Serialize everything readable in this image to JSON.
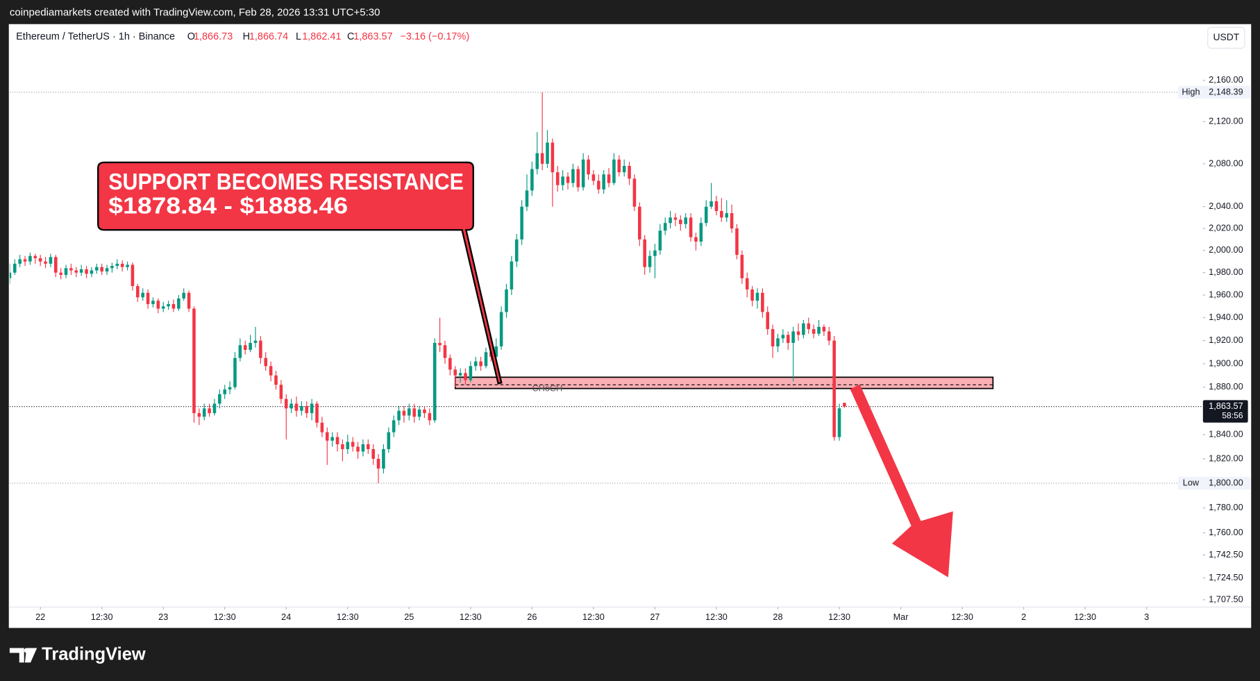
{
  "header": {
    "attribution": "coinpediamarkets created with TradingView.com, Feb 28, 2026 13:31 UTC+5:30"
  },
  "chart_data": {
    "type": "candlestick",
    "symbol": "Ethereum / TetherUS · 1h · Binance",
    "ohlc_legend": [
      {
        "key": "O",
        "text": "1,866.73"
      },
      {
        "key": "H",
        "text": "1,866.74"
      },
      {
        "key": "L",
        "text": "1,862.41"
      },
      {
        "key": "C",
        "text": "1,863.57"
      }
    ],
    "change": "−3.16 (−0.17%)",
    "currency": "USDT",
    "x": [
      -6,
      -5,
      -4,
      -3,
      -2,
      -1,
      0,
      1,
      2,
      3,
      4,
      5,
      6,
      7,
      8,
      9,
      10,
      11,
      12,
      13,
      14,
      15,
      16,
      17,
      18,
      19,
      20,
      21,
      22,
      23,
      24,
      25,
      26,
      27,
      28,
      29,
      30,
      31,
      32,
      33,
      34,
      35,
      36,
      37,
      38,
      39,
      40,
      41,
      42,
      43,
      44,
      45,
      46,
      47,
      48,
      49,
      50,
      51,
      52,
      53,
      54,
      55,
      56,
      57,
      58,
      59,
      60,
      61,
      62,
      63,
      64,
      65,
      66,
      67,
      68,
      69,
      70,
      71,
      72,
      73,
      74,
      75,
      76,
      77,
      78,
      79,
      80,
      81,
      82,
      83,
      84,
      85,
      86,
      87,
      88,
      89,
      90,
      91,
      92,
      93,
      94,
      95,
      96,
      97,
      98,
      99,
      100,
      101,
      102,
      103,
      104,
      105,
      106,
      107,
      108,
      109,
      110,
      111,
      112,
      113,
      114,
      115,
      116,
      117,
      118,
      119,
      120,
      121,
      122,
      123,
      124,
      125,
      126,
      127,
      128,
      129,
      130,
      131,
      132,
      133,
      134,
      135,
      136,
      137,
      138,
      139,
      140,
      141,
      142,
      143,
      144,
      145,
      146,
      147,
      148,
      149,
      150,
      151,
      152,
      153,
      154,
      155,
      156,
      157
    ],
    "open": [
      1975,
      1980,
      1988,
      1992,
      1990,
      1995,
      1993,
      1990,
      1988,
      1994,
      1980,
      1978,
      1984,
      1982,
      1980,
      1983,
      1979,
      1982,
      1985,
      1981,
      1984,
      1986,
      1988,
      1985,
      1987,
      1968,
      1958,
      1962,
      1952,
      1955,
      1948,
      1950,
      1952,
      1948,
      1957,
      1962,
      1948,
      1858,
      1855,
      1862,
      1858,
      1866,
      1874,
      1878,
      1880,
      1905,
      1916,
      1912,
      1918,
      1920,
      1905,
      1898,
      1890,
      1882,
      1870,
      1862,
      1866,
      1860,
      1864,
      1858,
      1866,
      1850,
      1842,
      1835,
      1838,
      1832,
      1828,
      1834,
      1830,
      1826,
      1832,
      1828,
      1820,
      1812,
      1828,
      1842,
      1852,
      1860,
      1856,
      1862,
      1855,
      1861,
      1858,
      1852,
      1918,
      1916,
      1905,
      1895,
      1890,
      1892,
      1886,
      1898,
      1902,
      1898,
      1910,
      1906,
      1915,
      1945,
      1965,
      1990,
      2010,
      2040,
      2055,
      2075,
      2090,
      2080,
      2100,
      2072,
      2060,
      2068,
      2062,
      2075,
      2058,
      2084,
      2070,
      2064,
      2056,
      2070,
      2062,
      2084,
      2072,
      2078,
      2066,
      2040,
      2010,
      1985,
      1995,
      2000,
      2018,
      2025,
      2030,
      2028,
      2024,
      2030,
      2012,
      2008,
      2025,
      2040,
      2045,
      2036,
      2030,
      2034,
      2020,
      1996,
      1975,
      1965,
      1955,
      1962,
      1945,
      1930,
      1915,
      1922,
      1925,
      1918,
      1928,
      1925,
      1935,
      1930,
      1926,
      1932,
      1928,
      1920,
      1838,
      1866.73
    ],
    "high": [
      1988,
      1992,
      1996,
      1995,
      1998,
      1997,
      1996,
      1994,
      1997,
      1996,
      1984,
      1987,
      1988,
      1985,
      1987,
      1986,
      1985,
      1988,
      1988,
      1987,
      1989,
      1992,
      1991,
      1990,
      1989,
      1970,
      1966,
      1965,
      1958,
      1957,
      1954,
      1955,
      1956,
      1960,
      1966,
      1964,
      1950,
      1862,
      1866,
      1866,
      1870,
      1878,
      1882,
      1885,
      1910,
      1922,
      1920,
      1925,
      1932,
      1924,
      1910,
      1902,
      1894,
      1886,
      1874,
      1870,
      1872,
      1868,
      1868,
      1870,
      1868,
      1855,
      1846,
      1842,
      1842,
      1836,
      1840,
      1838,
      1834,
      1836,
      1836,
      1832,
      1824,
      1832,
      1846,
      1856,
      1864,
      1864,
      1866,
      1866,
      1864,
      1864,
      1862,
      1922,
      1940,
      1920,
      1908,
      1898,
      1896,
      1896,
      1902,
      1906,
      1906,
      1914,
      1914,
      1922,
      1950,
      1970,
      1995,
      2015,
      2046,
      2070,
      2082,
      2110,
      2148.39,
      2112,
      2104,
      2078,
      2074,
      2072,
      2080,
      2078,
      2090,
      2088,
      2074,
      2070,
      2074,
      2076,
      2090,
      2088,
      2084,
      2082,
      2070,
      2044,
      2014,
      2000,
      2006,
      2024,
      2030,
      2036,
      2034,
      2032,
      2034,
      2034,
      2016,
      2030,
      2046,
      2062,
      2050,
      2048,
      2046,
      2042,
      2024,
      2000,
      1980,
      1968,
      1966,
      1966,
      1950,
      1934,
      1926,
      1930,
      1928,
      1932,
      1935,
      1938,
      1940,
      1934,
      1938,
      1934,
      1932,
      1924,
      1866,
      1866.74
    ],
    "low": [
      1970,
      1978,
      1985,
      1986,
      1987,
      1988,
      1986,
      1984,
      1985,
      1976,
      1974,
      1975,
      1978,
      1976,
      1977,
      1975,
      1976,
      1979,
      1978,
      1978,
      1980,
      1983,
      1981,
      1982,
      1964,
      1954,
      1955,
      1948,
      1949,
      1944,
      1945,
      1947,
      1945,
      1946,
      1955,
      1945,
      1850,
      1848,
      1852,
      1855,
      1856,
      1862,
      1870,
      1874,
      1878,
      1902,
      1908,
      1910,
      1914,
      1900,
      1894,
      1885,
      1878,
      1866,
      1836,
      1858,
      1855,
      1856,
      1854,
      1852,
      1846,
      1838,
      1815,
      1830,
      1826,
      1818,
      1824,
      1826,
      1820,
      1822,
      1824,
      1815,
      1800,
      1808,
      1825,
      1838,
      1848,
      1850,
      1852,
      1850,
      1852,
      1854,
      1848,
      1850,
      1910,
      1900,
      1890,
      1880,
      1884,
      1882,
      1884,
      1894,
      1894,
      1896,
      1902,
      1904,
      1912,
      1940,
      1960,
      1985,
      2005,
      2036,
      2050,
      2070,
      2074,
      2076,
      2040,
      2054,
      2055,
      2056,
      2058,
      2054,
      2055,
      2065,
      2060,
      2052,
      2052,
      2058,
      2060,
      2068,
      2068,
      2060,
      2036,
      2004,
      1978,
      1980,
      1975,
      1996,
      2014,
      2020,
      2022,
      2018,
      2020,
      2008,
      2000,
      2004,
      2022,
      2038,
      2032,
      2026,
      2026,
      2016,
      1992,
      1970,
      1958,
      1950,
      1948,
      1940,
      1925,
      1905,
      1910,
      1918,
      1912,
      1885,
      1920,
      1922,
      1926,
      1922,
      1924,
      1924,
      1916,
      1835,
      1835,
      1862.41
    ],
    "close": [
      1980,
      1988,
      1992,
      1990,
      1995,
      1993,
      1990,
      1988,
      1994,
      1980,
      1978,
      1984,
      1982,
      1980,
      1983,
      1979,
      1982,
      1985,
      1981,
      1984,
      1986,
      1988,
      1985,
      1987,
      1968,
      1958,
      1962,
      1952,
      1955,
      1948,
      1950,
      1952,
      1948,
      1957,
      1962,
      1948,
      1858,
      1855,
      1862,
      1858,
      1866,
      1874,
      1878,
      1880,
      1905,
      1916,
      1912,
      1918,
      1920,
      1905,
      1898,
      1890,
      1882,
      1870,
      1862,
      1866,
      1860,
      1864,
      1858,
      1866,
      1850,
      1842,
      1835,
      1838,
      1832,
      1828,
      1834,
      1830,
      1826,
      1832,
      1828,
      1820,
      1812,
      1828,
      1842,
      1852,
      1860,
      1856,
      1862,
      1855,
      1861,
      1858,
      1852,
      1918,
      1916,
      1905,
      1895,
      1890,
      1892,
      1886,
      1898,
      1902,
      1898,
      1910,
      1906,
      1915,
      1945,
      1965,
      1990,
      2010,
      2040,
      2055,
      2075,
      2090,
      2080,
      2100,
      2072,
      2060,
      2068,
      2062,
      2075,
      2058,
      2084,
      2070,
      2064,
      2056,
      2070,
      2062,
      2084,
      2072,
      2078,
      2066,
      2040,
      2010,
      1985,
      1995,
      2000,
      2018,
      2025,
      2030,
      2028,
      2024,
      2030,
      2012,
      2008,
      2025,
      2040,
      2045,
      2036,
      2030,
      2034,
      2020,
      1996,
      1975,
      1965,
      1955,
      1962,
      1945,
      1930,
      1915,
      1922,
      1925,
      1918,
      1928,
      1925,
      1935,
      1930,
      1926,
      1932,
      1928,
      1920,
      1838,
      1862,
      1863.57
    ],
    "up_color": "#089981",
    "down_color": "#f23645",
    "log_scale": true,
    "grid": false,
    "ylim": [
      1686.5,
      2215.7
    ],
    "yticks": [
      {
        "value": 2160,
        "label": "2,160.00"
      },
      {
        "value": 2120,
        "label": "2,120.00"
      },
      {
        "value": 2080,
        "label": "2,080.00"
      },
      {
        "value": 2040,
        "label": "2,040.00"
      },
      {
        "value": 2020,
        "label": "2,020.00"
      },
      {
        "value": 2000,
        "label": "2,000.00"
      },
      {
        "value": 1980,
        "label": "1,980.00"
      },
      {
        "value": 1960,
        "label": "1,960.00"
      },
      {
        "value": 1940,
        "label": "1,940.00"
      },
      {
        "value": 1920,
        "label": "1,920.00"
      },
      {
        "value": 1900,
        "label": "1,900.00"
      },
      {
        "value": 1880,
        "label": "1,880.00"
      },
      {
        "value": 1840,
        "label": "1,840.00"
      },
      {
        "value": 1820,
        "label": "1,820.00"
      },
      {
        "value": 1780,
        "label": "1,780.00"
      },
      {
        "value": 1760,
        "label": "1,760.00"
      },
      {
        "value": 1742.5,
        "label": "1,742.50"
      },
      {
        "value": 1724.5,
        "label": "1,724.50"
      },
      {
        "value": 1707.5,
        "label": "1,707.50"
      }
    ],
    "xlim": [
      -6,
      227
    ],
    "xticks": [
      {
        "value": 0,
        "label": "22"
      },
      {
        "value": 12,
        "label": "12:30"
      },
      {
        "value": 24,
        "label": "23"
      },
      {
        "value": 36,
        "label": "12:30"
      },
      {
        "value": 48,
        "label": "24"
      },
      {
        "value": 60,
        "label": "12:30"
      },
      {
        "value": 72,
        "label": "25"
      },
      {
        "value": 84,
        "label": "12:30"
      },
      {
        "value": 96,
        "label": "26"
      },
      {
        "value": 108,
        "label": "12:30"
      },
      {
        "value": 120,
        "label": "27"
      },
      {
        "value": 132,
        "label": "12:30"
      },
      {
        "value": 144,
        "label": "28"
      },
      {
        "value": 156,
        "label": "12:30"
      },
      {
        "value": 168,
        "label": "Mar"
      },
      {
        "value": 180,
        "label": "12:30"
      },
      {
        "value": 192,
        "label": "2"
      },
      {
        "value": 204,
        "label": "12:30"
      },
      {
        "value": 216,
        "label": "3"
      }
    ],
    "high_marker": {
      "label": "High",
      "value": 2148.39,
      "text": "2,148.39"
    },
    "low_marker": {
      "label": "Low",
      "value": 1800,
      "text": "1,800.00"
    },
    "last_price": {
      "value": 1863.57,
      "text": "1,863.57",
      "countdown": "58:56"
    },
    "zone": {
      "low": 1878.84,
      "high": 1888.46,
      "x": [
        81,
        186
      ],
      "color": "#f23645",
      "line": 1882,
      "line_label": "CHoCH"
    },
    "annotation": {
      "lines": [
        "SUPPORT BECOMES RESISTANCE",
        "$1878.84 - $1888.46"
      ]
    }
  },
  "footer": {
    "logo": "TradingView"
  }
}
